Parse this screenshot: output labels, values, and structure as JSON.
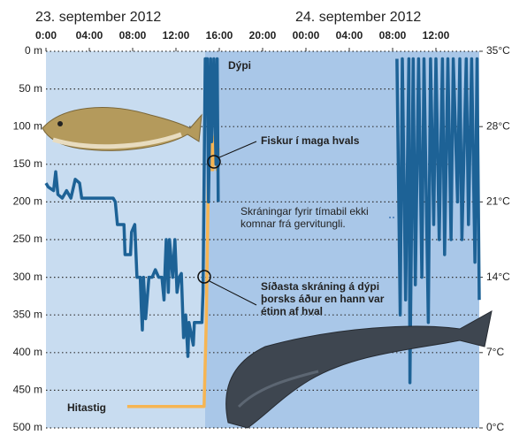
{
  "chart_data": {
    "type": "line",
    "date_labels": [
      "23. september 2012",
      "24. september 2012"
    ],
    "xlim": [
      0,
      40
    ],
    "xticks": [
      {
        "value": 0,
        "label": "0:00"
      },
      {
        "value": 4,
        "label": "04:00"
      },
      {
        "value": 8,
        "label": "08:00"
      },
      {
        "value": 12,
        "label": "12:00"
      },
      {
        "value": 16,
        "label": "16:00"
      },
      {
        "value": 20,
        "label": "20:00"
      },
      {
        "value": 24,
        "label": "00:00"
      },
      {
        "value": 28,
        "label": "04:00"
      },
      {
        "value": 32,
        "label": "08:00"
      },
      {
        "value": 36,
        "label": "12:00"
      }
    ],
    "ylim": [
      0,
      500
    ],
    "y_inverted": true,
    "yticks": [
      {
        "value": 0,
        "label": "0 m"
      },
      {
        "value": 50,
        "label": "50 m"
      },
      {
        "value": 100,
        "label": "100 m"
      },
      {
        "value": 150,
        "label": "150 m"
      },
      {
        "value": 200,
        "label": "200 m"
      },
      {
        "value": 250,
        "label": "250 m"
      },
      {
        "value": 300,
        "label": "300 m"
      },
      {
        "value": 350,
        "label": "350 m"
      },
      {
        "value": 400,
        "label": "400 m"
      },
      {
        "value": 450,
        "label": "450 m"
      },
      {
        "value": 500,
        "label": "500 m"
      }
    ],
    "y2lim": [
      0,
      35
    ],
    "y2ticks": [
      {
        "value": 0,
        "label": "0°C"
      },
      {
        "value": 7,
        "label": "7°C"
      },
      {
        "value": 14,
        "label": "14°C"
      },
      {
        "value": 21,
        "label": "21°C"
      },
      {
        "value": 28,
        "label": "28°C"
      },
      {
        "value": 35,
        "label": "35°C"
      }
    ],
    "grid": true,
    "series": [
      {
        "name": "Dýpi",
        "color": "#1d6296",
        "x": [
          0,
          0.2,
          0.7,
          0.9,
          1.1,
          1.5,
          1.9,
          2.3,
          2.7,
          3.1,
          3.3,
          6.2,
          6.4,
          6.6,
          7.2,
          7.3,
          7.8,
          7.9,
          8.2,
          8.4,
          8.7,
          8.8,
          8.9,
          9.0,
          9.2,
          9.5,
          9.8,
          10.1,
          10.4,
          10.7,
          10.9,
          11.0,
          11.1,
          11.3,
          11.4,
          11.7,
          11.9,
          12.1,
          12.3,
          12.5,
          12.7,
          12.9,
          13.1,
          13.2,
          13.6,
          13.7,
          14.4,
          14.5,
          14.7,
          14.9,
          15.0,
          15.2,
          15.3,
          15.5,
          15.7,
          15.8,
          15.9,
          24,
          32.4,
          32.7,
          32.9,
          33.2,
          33.5,
          33.6,
          33.9,
          34.1,
          34.4,
          34.7,
          34.9,
          35.3,
          35.5,
          35.8,
          36.0,
          36.3,
          36.6,
          36.8,
          37.1,
          37.4,
          37.6,
          38.0,
          38.2,
          38.4,
          38.8,
          39.0,
          39.3,
          39.6,
          39.8,
          40.0
        ],
        "values": [
          175,
          180,
          185,
          160,
          190,
          195,
          185,
          195,
          170,
          175,
          195,
          195,
          200,
          230,
          230,
          270,
          270,
          240,
          230,
          300,
          300,
          340,
          370,
          300,
          355,
          300,
          300,
          290,
          300,
          300,
          330,
          285,
          250,
          320,
          250,
          300,
          250,
          320,
          300,
          295,
          380,
          350,
          405,
          360,
          390,
          360,
          360,
          320,
          10,
          10,
          200,
          10,
          120,
          10,
          150,
          10,
          200,
          null,
          10,
          350,
          10,
          330,
          10,
          440,
          10,
          310,
          10,
          300,
          10,
          360,
          10,
          230,
          10,
          250,
          10,
          270,
          10,
          250,
          10,
          200,
          10,
          250,
          10,
          230,
          10,
          280,
          10,
          330
        ]
      },
      {
        "name": "Hitastig",
        "color": "#f6b553",
        "axis": "y2",
        "x": [
          7.5,
          14.6,
          14.8,
          15.0,
          15.1,
          15.2,
          15.3,
          15.4,
          15.5,
          15.6,
          15.7,
          15.8,
          15.9
        ],
        "values": [
          2,
          2,
          10,
          24,
          27,
          24,
          28,
          24,
          27,
          25,
          28,
          24,
          26
        ]
      }
    ],
    "annotations": [
      {
        "lines": [
          "Fiskur í maga hvals"
        ]
      },
      {
        "lines": [
          "Skráningar fyrir tímabil ekki",
          "komnar frá gervitungli."
        ]
      },
      {
        "lines": [
          "Síðasta skráning á dýpi",
          "þorsks áður en hann var",
          "étinn af hval"
        ]
      }
    ]
  }
}
